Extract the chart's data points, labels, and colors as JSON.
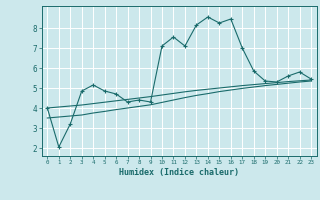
{
  "xlabel": "Humidex (Indice chaleur)",
  "background_color": "#cce8ec",
  "grid_color": "#ffffff",
  "line_color": "#1a6b6b",
  "xlim": [
    -0.5,
    23.5
  ],
  "ylim": [
    1.6,
    9.1
  ],
  "yticks": [
    2,
    3,
    4,
    5,
    6,
    7,
    8
  ],
  "xticks": [
    0,
    1,
    2,
    3,
    4,
    5,
    6,
    7,
    8,
    9,
    10,
    11,
    12,
    13,
    14,
    15,
    16,
    17,
    18,
    19,
    20,
    21,
    22,
    23
  ],
  "line1_x": [
    0,
    1,
    2,
    3,
    4,
    5,
    6,
    7,
    8,
    9,
    10,
    11,
    12,
    13,
    14,
    15,
    16,
    17,
    18,
    19,
    20,
    21,
    22,
    23
  ],
  "line1_y": [
    4.0,
    2.05,
    3.2,
    4.85,
    5.15,
    4.85,
    4.7,
    4.3,
    4.4,
    4.3,
    7.1,
    7.55,
    7.1,
    8.15,
    8.55,
    8.25,
    8.45,
    7.0,
    5.85,
    5.35,
    5.3,
    5.6,
    5.8,
    5.45
  ],
  "line2_x": [
    0,
    1,
    2,
    3,
    4,
    5,
    6,
    7,
    8,
    9,
    10,
    11,
    12,
    13,
    14,
    15,
    16,
    17,
    18,
    19,
    20,
    21,
    22,
    23
  ],
  "line2_y": [
    3.5,
    3.55,
    3.6,
    3.65,
    3.75,
    3.83,
    3.92,
    4.0,
    4.08,
    4.16,
    4.28,
    4.4,
    4.52,
    4.63,
    4.72,
    4.82,
    4.9,
    4.98,
    5.05,
    5.12,
    5.18,
    5.24,
    5.3,
    5.35
  ],
  "line3_x": [
    0,
    1,
    2,
    3,
    4,
    5,
    6,
    7,
    8,
    9,
    10,
    11,
    12,
    13,
    14,
    15,
    16,
    17,
    18,
    19,
    20,
    21,
    22,
    23
  ],
  "line3_y": [
    4.0,
    4.05,
    4.1,
    4.15,
    4.22,
    4.29,
    4.36,
    4.43,
    4.5,
    4.57,
    4.65,
    4.73,
    4.81,
    4.88,
    4.94,
    5.0,
    5.06,
    5.12,
    5.17,
    5.22,
    5.27,
    5.32,
    5.36,
    5.4
  ]
}
